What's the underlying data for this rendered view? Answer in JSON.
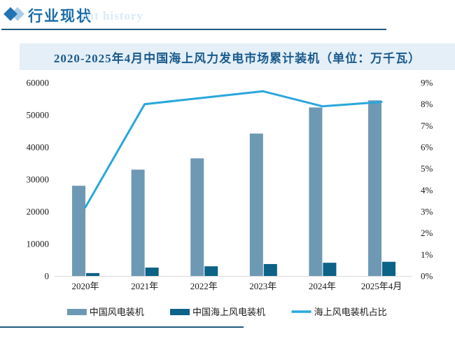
{
  "header": {
    "title": "行业现状",
    "watermark": "ent history"
  },
  "chart_data": {
    "type": "combo bar + line",
    "title": "2020-2025年4月中国海上风力发电市场累计装机（单位：万千瓦）",
    "categories": [
      "2020年",
      "2021年",
      "2022年",
      "2023年",
      "2024年",
      "2025年4月"
    ],
    "series": [
      {
        "name": "中国风电装机",
        "type": "bar",
        "axis": "left",
        "color": "#6E99B4",
        "values": [
          28000,
          33000,
          36500,
          44200,
          52300,
          54500
        ]
      },
      {
        "name": "中国海上风电装机",
        "type": "bar",
        "axis": "left",
        "color": "#0C6287",
        "values": [
          900,
          2600,
          3000,
          3700,
          4100,
          4400
        ]
      },
      {
        "name": "海上风电装机占比",
        "type": "line",
        "axis": "right",
        "color": "#29A7DB",
        "values": [
          3.2,
          8.0,
          8.3,
          8.6,
          7.9,
          8.1
        ]
      }
    ],
    "left_axis": {
      "min": 0,
      "max": 60000,
      "step": 10000,
      "ticks": [
        "0",
        "10000",
        "20000",
        "30000",
        "40000",
        "50000",
        "60000"
      ]
    },
    "right_axis": {
      "min": 0,
      "max": 9,
      "step": 1,
      "ticks": [
        "0%",
        "1%",
        "2%",
        "3%",
        "4%",
        "5%",
        "6%",
        "7%",
        "8%",
        "9%"
      ]
    },
    "grid": false,
    "legend_position": "bottom"
  },
  "colors": {
    "accent_dark_blue": "#1B6CA8",
    "diamond_dark": "#2273B4",
    "diamond_light": "#A9CDE9",
    "watermark": "#D9EBF7",
    "band_bg": "#E4EFF7",
    "band_text": "#1A5A8C",
    "axis_text": "#1A1A1A",
    "baseline": "#D9D9D9",
    "rule": "#215B80"
  }
}
